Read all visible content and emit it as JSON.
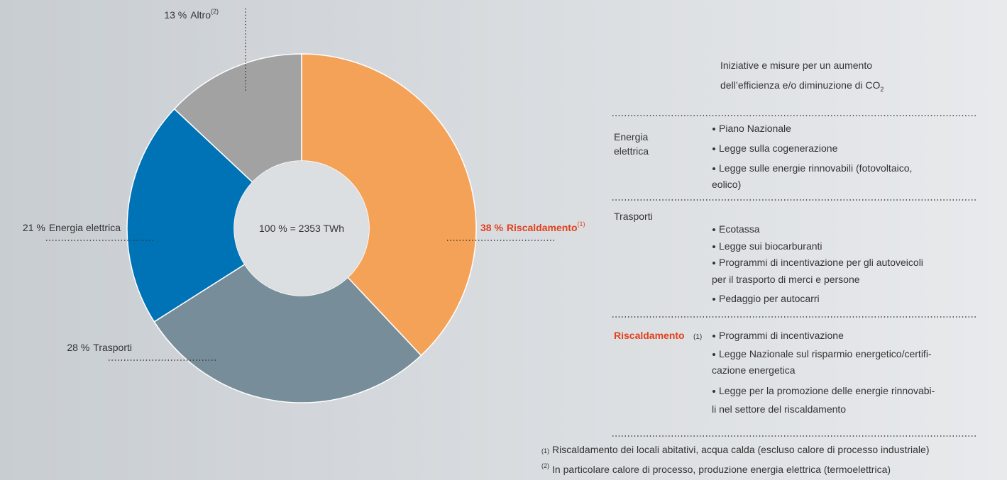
{
  "chart_data": {
    "type": "pie",
    "categories": [
      "Riscaldamento",
      "Trasporti",
      "Energia elettrica",
      "Altro"
    ],
    "values": [
      38,
      28,
      21,
      13
    ],
    "value_labels": [
      "38 %",
      "28 %",
      "21 %",
      "13 %"
    ],
    "category_notes": [
      "(1)",
      null,
      null,
      "(2)"
    ],
    "colors": [
      "#f5a259",
      "#778e9a",
      "#0073b6",
      "#a2a2a2"
    ],
    "label_colors": [
      "#e2401c",
      "#333333",
      "#333333",
      "#333333"
    ],
    "label_bold": [
      true,
      false,
      false,
      false
    ],
    "center_label": "100 % = 2353 TWh"
  },
  "panel": {
    "intro": [
      "Iniziative e misure per un aumento",
      "dell’efficienza e/o diminuzione di CO"
    ],
    "intro_subscript": "2",
    "sections": [
      {
        "title": [
          "Energia",
          "elettrica"
        ],
        "items": [
          [
            "Piano Nazionale"
          ],
          [
            "Legge sulla cogenerazione"
          ],
          [
            "Legge sulle energie rinnovabili (fotovoltaico,",
            "eolico)"
          ]
        ]
      },
      {
        "title": [
          "Trasporti"
        ],
        "items": [
          [
            "Ecotassa"
          ],
          [
            "Legge sui biocarburanti"
          ],
          [
            "Programmi di incentivazione per gli autoveicoli",
            "per il trasporto di merci e persone"
          ],
          [
            "Pedaggio per autocarri"
          ]
        ]
      },
      {
        "title": [
          "Riscaldamento"
        ],
        "title_note": "(1)",
        "title_color": "#e2401c",
        "items": [
          [
            "Programmi di incentivazione"
          ],
          [
            "Legge Nazionale sul risparmio energetico/certifi-",
            "cazione energetica"
          ],
          [
            "Legge per la promozione delle energie rinnovabi-",
            "li nel settore del riscaldamento"
          ]
        ]
      }
    ],
    "footnotes": [
      {
        "mark": "(1)",
        "text": "Riscaldamento dei locali abitativi, acqua calda (escluso calore di processo industriale)"
      },
      {
        "mark": "(2)",
        "text": "In particolare calore di processo, produzione energia elettrica (termoelettrica)"
      }
    ]
  }
}
